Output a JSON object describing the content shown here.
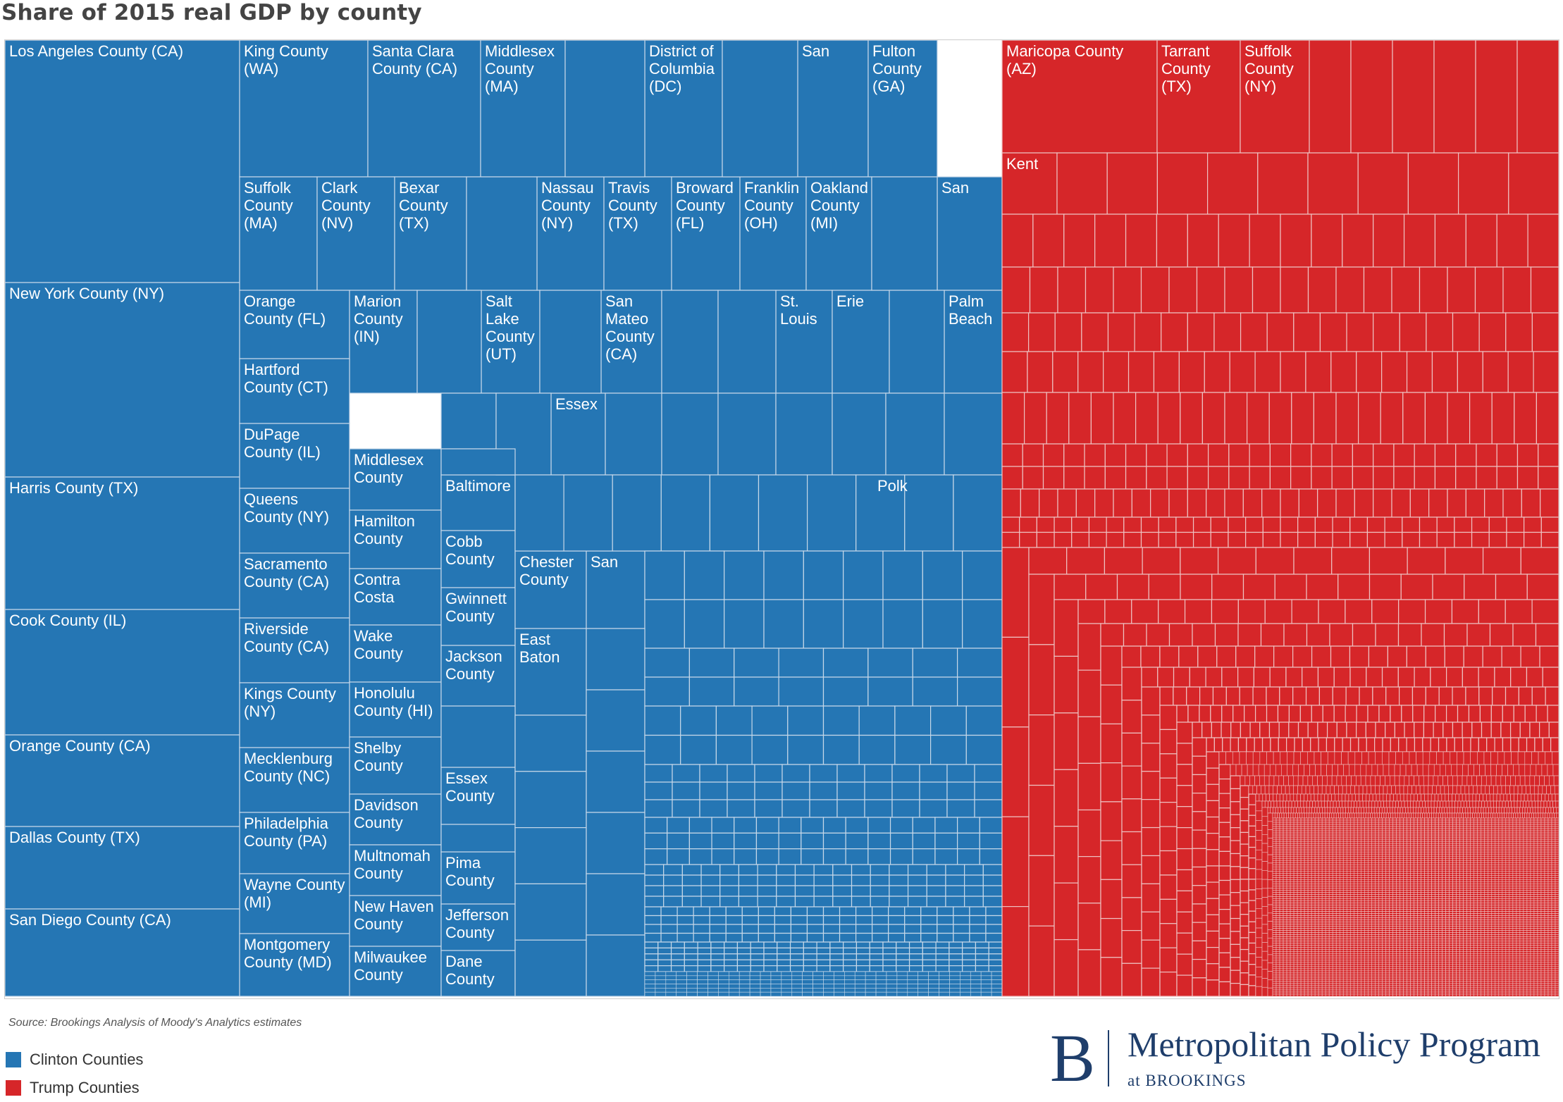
{
  "title": "Share of 2015 real GDP by county",
  "colors": {
    "clinton": "#2576b4",
    "trump": "#d62629",
    "divider": "#c6d8e8",
    "divider_red": "#eec1c1"
  },
  "chart_data": {
    "type": "treemap",
    "title": "Share of 2015 real GDP by county",
    "legend_position": "bottom-left",
    "series": [
      {
        "name": "Clinton Counties",
        "color": "#2576b4",
        "labeled_counties": [
          "Los Angeles County (CA)",
          "New York County (NY)",
          "Harris County (TX)",
          "Cook County (IL)",
          "Orange County (CA)",
          "Dallas County (TX)",
          "San Diego County (CA)",
          "King County (WA)",
          "Santa Clara County (CA)",
          "Middlesex County (MA)",
          "District of Columbia (DC)",
          "San",
          "Fulton County (GA)",
          "Suffolk County (MA)",
          "Clark County (NV)",
          "Bexar County (TX)",
          "Nassau County (NY)",
          "Travis County (TX)",
          "Broward County (FL)",
          "Franklin County (OH)",
          "Oakland County (MI)",
          "San",
          "Orange County (FL)",
          "Marion County (IN)",
          "Salt Lake County (UT)",
          "San Mateo County (CA)",
          "St. Louis",
          "Erie",
          "Palm Beach",
          "Hartford County (CT)",
          "DuPage County (IL)",
          "Queens County (NY)",
          "Sacramento County (CA)",
          "Riverside County (CA)",
          "Kings County (NY)",
          "Mecklenburg County (NC)",
          "Philadelphia County (PA)",
          "Wayne County (MI)",
          "Montgomery County (MD)",
          "Middlesex County",
          "Hamilton County",
          "Contra Costa",
          "Wake County",
          "Honolulu County (HI)",
          "Shelby County",
          "Davidson County",
          "Multnomah County",
          "New Haven County",
          "Milwaukee County",
          "Essex",
          "Baltimore",
          "Polk",
          "Cobb County",
          "Gwinnett County",
          "Jackson County",
          "Essex County",
          "Pima County",
          "Jefferson County",
          "Dane County",
          "Chester County",
          "San",
          "East Baton"
        ]
      },
      {
        "name": "Trump Counties",
        "color": "#d62629",
        "labeled_counties": [
          "Maricopa County (AZ)",
          "Tarrant County (TX)",
          "Suffolk County (NY)",
          "Kent"
        ]
      }
    ]
  },
  "labels": [
    {
      "t": [
        "Los Angeles County (CA)"
      ]
    },
    {
      "t": [
        "New York County (NY)"
      ]
    },
    {
      "t": [
        "Harris County (TX)"
      ]
    },
    {
      "t": [
        "Cook County (IL)"
      ]
    },
    {
      "t": [
        "Orange County (CA)"
      ]
    },
    {
      "t": [
        "Dallas County (TX)"
      ]
    },
    {
      "t": [
        "San Diego County (CA)"
      ]
    },
    {
      "t": [
        "King County",
        "(WA)"
      ]
    },
    {
      "t": [
        "Santa Clara",
        "County (CA)"
      ]
    },
    {
      "t": [
        "Middlesex",
        "County",
        "(MA)"
      ]
    },
    {
      "t": [
        "District of",
        "Columbia",
        "(DC)"
      ]
    },
    {
      "t": [
        "San"
      ]
    },
    {
      "t": [
        "Fulton",
        "County",
        "(GA)"
      ]
    },
    {
      "t": [
        "Suffolk",
        "County",
        "(MA)"
      ]
    },
    {
      "t": [
        "Clark",
        "County",
        "(NV)"
      ]
    },
    {
      "t": [
        "Bexar",
        "County",
        "(TX)"
      ]
    },
    {
      "t": [
        "Nassau",
        "County",
        "(NY)"
      ]
    },
    {
      "t": [
        "Travis",
        "County",
        "(TX)"
      ]
    },
    {
      "t": [
        "Broward",
        "County",
        "(FL)"
      ]
    },
    {
      "t": [
        "Franklin",
        "County",
        "(OH)"
      ]
    },
    {
      "t": [
        "Oakland",
        "County",
        "(MI)"
      ]
    },
    {
      "t": [
        "San"
      ]
    },
    {
      "t": [
        "Orange",
        "County (FL)"
      ]
    },
    {
      "t": [
        "Marion",
        "County",
        "(IN)"
      ]
    },
    {
      "t": [
        "Salt",
        "Lake",
        "County",
        "(UT)"
      ]
    },
    {
      "t": [
        "San",
        "Mateo",
        "County",
        "(CA)"
      ]
    },
    {
      "t": [
        "St.",
        "Louis"
      ]
    },
    {
      "t": [
        "Erie"
      ]
    },
    {
      "t": [
        "Palm",
        "Beach"
      ]
    },
    {
      "t": [
        "Hartford",
        "County (CT)"
      ]
    },
    {
      "t": [
        "DuPage",
        "County (IL)"
      ]
    },
    {
      "t": [
        "Queens",
        "County (NY)"
      ]
    },
    {
      "t": [
        "Sacramento",
        "County (CA)"
      ]
    },
    {
      "t": [
        "Riverside",
        "County (CA)"
      ]
    },
    {
      "t": [
        "Kings County",
        "(NY)"
      ]
    },
    {
      "t": [
        "Mecklenburg",
        "County (NC)"
      ]
    },
    {
      "t": [
        "Philadelphia",
        "County (PA)"
      ]
    },
    {
      "t": [
        "Wayne County",
        "(MI)"
      ]
    },
    {
      "t": [
        "Montgomery",
        "County (MD)"
      ]
    },
    {
      "t": [
        "Middlesex",
        "County"
      ]
    },
    {
      "t": [
        "Hamilton",
        "County"
      ]
    },
    {
      "t": [
        "Contra",
        "Costa"
      ]
    },
    {
      "t": [
        "Wake",
        "County"
      ]
    },
    {
      "t": [
        "Honolulu",
        "County (HI)"
      ]
    },
    {
      "t": [
        "Shelby",
        "County"
      ]
    },
    {
      "t": [
        "Davidson",
        "County"
      ]
    },
    {
      "t": [
        "Multnomah",
        "County"
      ]
    },
    {
      "t": [
        "New Haven",
        "County"
      ]
    },
    {
      "t": [
        "Milwaukee",
        "County"
      ]
    },
    {
      "t": [
        "Essex"
      ]
    },
    {
      "t": [
        "Baltimore"
      ]
    },
    {
      "t": [
        "Polk"
      ]
    },
    {
      "t": [
        "Cobb",
        "County"
      ]
    },
    {
      "t": [
        "Gwinnett",
        "County"
      ]
    },
    {
      "t": [
        "Jackson",
        "County"
      ]
    },
    {
      "t": [
        "Essex",
        "County"
      ]
    },
    {
      "t": [
        "Pima",
        "County"
      ]
    },
    {
      "t": [
        "Jefferson",
        "County"
      ]
    },
    {
      "t": [
        "Dane",
        "County"
      ]
    },
    {
      "t": [
        "Chester",
        "County"
      ]
    },
    {
      "t": [
        "San"
      ]
    },
    {
      "t": [
        "East",
        "Baton"
      ]
    },
    {
      "t": [
        "Maricopa County",
        "(AZ)"
      ]
    },
    {
      "t": [
        "Tarrant",
        "County",
        "(TX)"
      ]
    },
    {
      "t": [
        "Suffolk",
        "County",
        "(NY)"
      ]
    },
    {
      "t": [
        "Kent"
      ]
    }
  ],
  "source": "Source: Brookings Analysis of Moody's Analytics estimates",
  "legend": [
    {
      "label": "Clinton Counties",
      "color": "#2576b4"
    },
    {
      "label": "Trump Counties",
      "color": "#d62629"
    }
  ],
  "brand": {
    "mark": "B",
    "title": "Metropolitan Policy Program",
    "subtitle": "at BROOKINGS"
  }
}
